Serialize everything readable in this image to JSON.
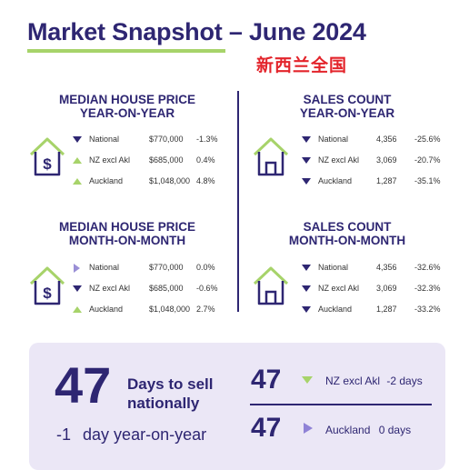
{
  "header": {
    "title": "Market Snapshot – June 2024",
    "subtitle": "新西兰全国"
  },
  "sections": [
    {
      "title_line1": "MEDIAN HOUSE PRICE",
      "title_line2": "YEAR-ON-YEAR",
      "icon": "house-dollar-icon",
      "rows": [
        {
          "trend": "down",
          "region": "National",
          "value": "$770,000",
          "change": "-1.3%"
        },
        {
          "trend": "up",
          "region": "NZ excl Akl",
          "value": "$685,000",
          "change": "0.4%"
        },
        {
          "trend": "up",
          "region": "Auckland",
          "value": "$1,048,000",
          "change": "4.8%"
        }
      ]
    },
    {
      "title_line1": "SALES COUNT",
      "title_line2": "YEAR-ON-YEAR",
      "icon": "house-icon",
      "rows": [
        {
          "trend": "down",
          "region": "National",
          "value": "4,356",
          "change": "-25.6%"
        },
        {
          "trend": "down",
          "region": "NZ excl Akl",
          "value": "3,069",
          "change": "-20.7%"
        },
        {
          "trend": "down",
          "region": "Auckland",
          "value": "1,287",
          "change": "-35.1%"
        }
      ]
    },
    {
      "title_line1": "MEDIAN HOUSE PRICE",
      "title_line2": "MONTH-ON-MONTH",
      "icon": "house-dollar-icon",
      "rows": [
        {
          "trend": "flat",
          "region": "National",
          "value": "$770,000",
          "change": "0.0%"
        },
        {
          "trend": "down",
          "region": "NZ excl Akl",
          "value": "$685,000",
          "change": "-0.6%"
        },
        {
          "trend": "up",
          "region": "Auckland",
          "value": "$1,048,000",
          "change": "2.7%"
        }
      ]
    },
    {
      "title_line1": "SALES COUNT",
      "title_line2": "MONTH-ON-MONTH",
      "icon": "house-icon",
      "rows": [
        {
          "trend": "down",
          "region": "National",
          "value": "4,356",
          "change": "-32.6%"
        },
        {
          "trend": "down",
          "region": "NZ excl Akl",
          "value": "3,069",
          "change": "-32.3%"
        },
        {
          "trend": "down",
          "region": "Auckland",
          "value": "1,287",
          "change": "-33.2%"
        }
      ]
    }
  ],
  "days_panel": {
    "national_days": "47",
    "national_label_line1": "Days to sell",
    "national_label_line2": "nationally",
    "yoy_change": "-1",
    "yoy_label": "day year-on-year",
    "regions": [
      {
        "days": "47",
        "trend": "down",
        "region": "NZ excl Akl",
        "change": "-2 days"
      },
      {
        "days": "47",
        "trend": "flat",
        "region": "Auckland",
        "change": "0 days"
      }
    ]
  },
  "colors": {
    "navy": "#2e2672",
    "green": "#a7d36a",
    "red": "#e3242b",
    "lavender": "#ebe7f6"
  }
}
